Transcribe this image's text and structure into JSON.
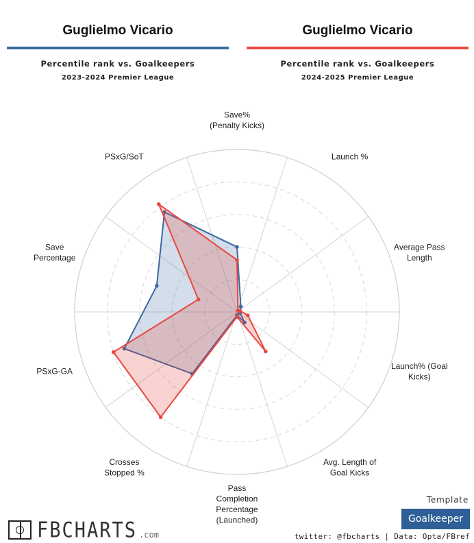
{
  "header": {
    "left": {
      "player": "Guglielmo Vicario",
      "subtitle": "Percentile rank vs. Goalkeepers",
      "season": "2023-2024 Premier League",
      "color": "#3b6aa0"
    },
    "right": {
      "player": "Guglielmo Vicario",
      "subtitle": "Percentile rank vs. Goalkeepers",
      "season": "2024-2025 Premier League",
      "color": "#e8483f"
    }
  },
  "chart_data": {
    "type": "radar",
    "axis_range": [
      0,
      100
    ],
    "grid_levels": [
      20,
      40,
      60,
      80,
      100
    ],
    "axes": [
      [
        "Save%",
        "(Penalty Kicks)"
      ],
      [
        "Launch %"
      ],
      [
        "Average Pass",
        "Length"
      ],
      [
        "Launch% (Goal",
        "Kicks)"
      ],
      [
        "Avg. Length of",
        "Goal Kicks"
      ],
      [
        "Pass",
        "Completion",
        "Percentage",
        "(Launched)"
      ],
      [
        "Crosses",
        "Stopped %"
      ],
      [
        "PSxG-GA"
      ],
      [
        "Save",
        "Percentage"
      ],
      [
        "PSxG/SoT"
      ]
    ],
    "series": [
      {
        "name": "2023-2024 Premier League",
        "color": "#3b6aa0",
        "values": [
          40,
          4,
          2,
          2,
          8,
          2,
          47,
          73,
          52,
          76
        ]
      },
      {
        "name": "2024-2025 Premier League",
        "color": "#e8483f",
        "values": [
          32,
          1,
          2,
          7,
          30,
          3,
          80,
          80,
          25,
          82
        ]
      }
    ]
  },
  "footer": {
    "template_label": "Template",
    "position": "Goalkeeper",
    "credits": "twitter: @fbcharts | Data: Opta/FBref",
    "brand": "FBCHARTS",
    "brand_suffix": ".com"
  }
}
